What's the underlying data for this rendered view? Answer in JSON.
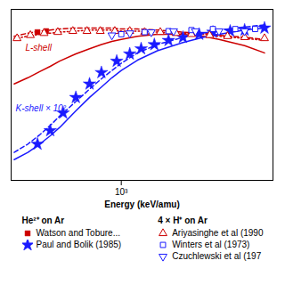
{
  "chart_data": {
    "type": "line",
    "xlabel": "Energy (keV/amu)",
    "log": "x",
    "xlim": [
      290,
      5500
    ],
    "ylim": [
      -0.55,
      1.1
    ],
    "xticks": [
      {
        "value": 1000,
        "label": "10³"
      }
    ],
    "tick_labels": "x",
    "legend": "bottom",
    "series": [
      {
        "type": "line",
        "color": "#cc0000",
        "line_style": "solid",
        "x": [
          300,
          350,
          400,
          450,
          500,
          600,
          700,
          800,
          900,
          1000,
          1200,
          1500,
          2000,
          2500,
          3000,
          4000,
          5000
        ],
        "values": [
          0.38,
          0.44,
          0.5,
          0.55,
          0.6,
          0.67,
          0.72,
          0.76,
          0.79,
          0.81,
          0.84,
          0.86,
          0.86,
          0.84,
          0.81,
          0.75,
          0.68
        ]
      },
      {
        "type": "line",
        "color": "#cc0000",
        "line_style": "dashed",
        "x": [
          300,
          350,
          400,
          450,
          500,
          600,
          700,
          800,
          900,
          1000,
          1200,
          1500,
          2000,
          2500,
          3000,
          4000,
          5000
        ],
        "values": [
          0.84,
          0.87,
          0.89,
          0.9,
          0.91,
          0.92,
          0.92,
          0.92,
          0.92,
          0.91,
          0.91,
          0.9,
          0.88,
          0.87,
          0.85,
          0.83,
          0.81
        ]
      },
      {
        "type": "line",
        "color": "#cc0000",
        "line_style": "dotted",
        "x": [
          300,
          350,
          400,
          450,
          500,
          600,
          700,
          800,
          900,
          1000,
          1200,
          1500,
          2000,
          2500,
          3000,
          4000,
          5000
        ],
        "values": [
          0.82,
          0.84,
          0.86,
          0.87,
          0.88,
          0.89,
          0.9,
          0.9,
          0.9,
          0.89,
          0.89,
          0.88,
          0.87,
          0.86,
          0.84,
          0.82,
          0.8
        ]
      },
      {
        "type": "line",
        "color": "#1a1aff",
        "line_style": "solid",
        "x": [
          300,
          350,
          400,
          450,
          500,
          600,
          700,
          800,
          900,
          1000,
          1200,
          1500,
          2000,
          2500,
          3000,
          4000,
          5000
        ],
        "values": [
          -0.35,
          -0.28,
          -0.2,
          -0.12,
          -0.04,
          0.12,
          0.25,
          0.35,
          0.44,
          0.51,
          0.61,
          0.7,
          0.78,
          0.83,
          0.86,
          0.9,
          0.92
        ]
      },
      {
        "type": "line",
        "color": "#1a1aff",
        "line_style": "dashed",
        "x": [
          300,
          350,
          400,
          450,
          500,
          600,
          700,
          800,
          900,
          1000,
          1200,
          1500,
          2000,
          2500,
          3000,
          4000,
          5000
        ],
        "values": [
          -0.28,
          -0.2,
          -0.11,
          -0.02,
          0.07,
          0.21,
          0.33,
          0.43,
          0.51,
          0.58,
          0.68,
          0.76,
          0.83,
          0.87,
          0.9,
          0.93,
          0.95
        ]
      },
      {
        "name": "Watson and Tobure...",
        "type": "scatter",
        "marker": "square",
        "color": "#cc0000",
        "x": [
          390,
          430
        ],
        "values": [
          0.88,
          0.89
        ]
      },
      {
        "name": "Paul and Bolik (1985)",
        "type": "scatter",
        "marker": "star",
        "color": "#1a1aff",
        "x": [
          390,
          450,
          520,
          600,
          700,
          800,
          950,
          1100,
          1250,
          1450,
          1700,
          2000,
          2400,
          2800,
          3400,
          4000,
          5000
        ],
        "values": [
          -0.2,
          -0.07,
          0.1,
          0.25,
          0.38,
          0.49,
          0.6,
          0.67,
          0.72,
          0.76,
          0.8,
          0.83,
          0.86,
          0.88,
          0.89,
          0.9,
          0.92
        ]
      },
      {
        "name": "Ariyasinghe et al (1990",
        "type": "scatter",
        "marker": "triangle-open",
        "color": "#cc0000",
        "x": [
          310,
          360,
          420,
          490,
          580,
          680,
          790,
          930,
          1100,
          1300,
          1550,
          1850,
          2200,
          2700,
          3300,
          4000,
          5000
        ],
        "values": [
          0.82,
          0.85,
          0.87,
          0.88,
          0.89,
          0.89,
          0.89,
          0.89,
          0.89,
          0.88,
          0.88,
          0.87,
          0.86,
          0.85,
          0.84,
          0.83,
          0.82
        ]
      },
      {
        "name": "Winters et al (1973)",
        "type": "scatter",
        "marker": "square-open",
        "color": "#1a1aff",
        "x": [
          1000,
          1300,
          1700,
          2200,
          2800,
          3600,
          4500
        ],
        "values": [
          0.86,
          0.88,
          0.89,
          0.9,
          0.91,
          0.91,
          0.91
        ]
      },
      {
        "name": "Czuchlewski et al (197",
        "type": "scatter",
        "marker": "triangle-down-open",
        "color": "#1a1aff",
        "x": [
          900,
          1100,
          1400,
          1800,
          2300,
          3000,
          4000
        ],
        "values": [
          0.85,
          0.87,
          0.88,
          0.89,
          0.89,
          0.89,
          0.89
        ]
      }
    ],
    "annotations": [
      {
        "text": "L-shell",
        "x": 340,
        "y": 0.7,
        "color": "#cc0000"
      },
      {
        "text": "K-shell × 10²",
        "x": 305,
        "y": 0.12,
        "color": "#1a1aff"
      }
    ],
    "legend_groups": [
      {
        "title": "He²⁺ on Ar",
        "series": [
          "Watson and Tobure...",
          "Paul and Bolik (1985)"
        ]
      },
      {
        "title": "4 × H⁺ on Ar",
        "series": [
          "Ariyasinghe et al (1990",
          "Winters et al (1973)",
          "Czuchlewski et al (197"
        ]
      }
    ]
  }
}
